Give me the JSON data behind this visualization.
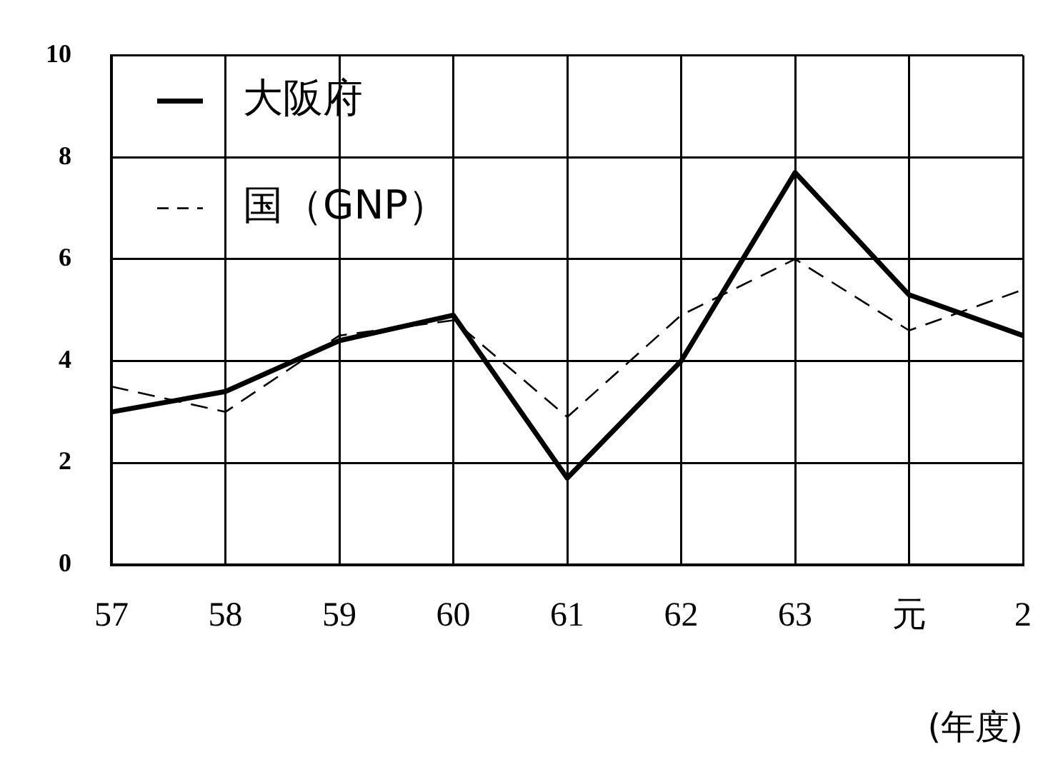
{
  "chart_data": {
    "type": "line",
    "xlabel": "(年度)",
    "categories": [
      "57",
      "58",
      "59",
      "60",
      "61",
      "62",
      "63",
      "元",
      "2"
    ],
    "series": [
      {
        "name": "大阪府",
        "color": "#000000",
        "line_style": "solid",
        "values": [
          3.0,
          3.4,
          4.4,
          4.9,
          1.7,
          4.0,
          7.7,
          5.3,
          4.5
        ]
      },
      {
        "name": "国（GNP）",
        "color": "#000000",
        "line_style": "dashed",
        "values": [
          3.5,
          3.0,
          4.5,
          4.8,
          2.9,
          4.9,
          6.0,
          4.6,
          5.4
        ]
      }
    ],
    "ylim": [
      0,
      10
    ],
    "yticks": [
      0,
      2,
      4,
      6,
      8,
      10
    ],
    "grid": true,
    "legend": "top left",
    "marker": "none"
  }
}
